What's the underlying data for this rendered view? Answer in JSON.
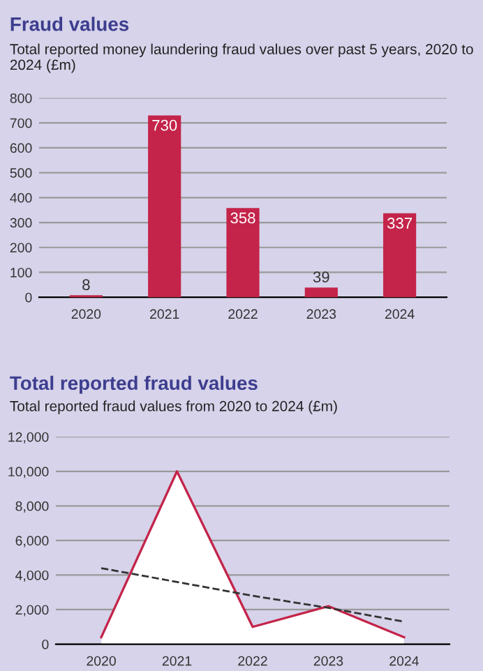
{
  "chart_data": [
    {
      "type": "bar",
      "title": "Fraud values",
      "subtitle": "Total reported money laundering fraud values over past 5 years, 2020 to 2024 (£m)",
      "categories": [
        "2020",
        "2021",
        "2022",
        "2023",
        "2024"
      ],
      "values": [
        8,
        730,
        358,
        39,
        337
      ],
      "color": "#c4244a",
      "ylim": [
        0,
        800
      ],
      "yticks": [
        0,
        100,
        200,
        300,
        400,
        500,
        600,
        700,
        800
      ],
      "grid": "y",
      "data_labels": true,
      "legend": false
    },
    {
      "type": "area",
      "title": "Total reported fraud values",
      "subtitle": "Total reported fraud values from 2020 to 2024 (£m)",
      "categories": [
        "2020",
        "2021",
        "2022",
        "2023",
        "2024"
      ],
      "series": [
        {
          "type": "area",
          "color": "#c4244a",
          "values": [
            400,
            10000,
            1000,
            2200,
            400
          ]
        },
        {
          "type": "line",
          "color": "#333333",
          "line_style": "dashed",
          "values": [
            4400,
            3600,
            2800,
            2100,
            1300
          ]
        }
      ],
      "ylim": [
        0,
        12000
      ],
      "yticks": [
        0,
        {
          "value": 2000,
          "label": "2,000"
        },
        {
          "value": 4000,
          "label": "4,000"
        },
        {
          "value": 6000,
          "label": "6,000"
        },
        {
          "value": 8000,
          "label": "8,000"
        },
        {
          "value": 10000,
          "label": "10,000"
        },
        {
          "value": 12000,
          "label": "12,000"
        }
      ],
      "grid": "y",
      "legend": false
    }
  ]
}
